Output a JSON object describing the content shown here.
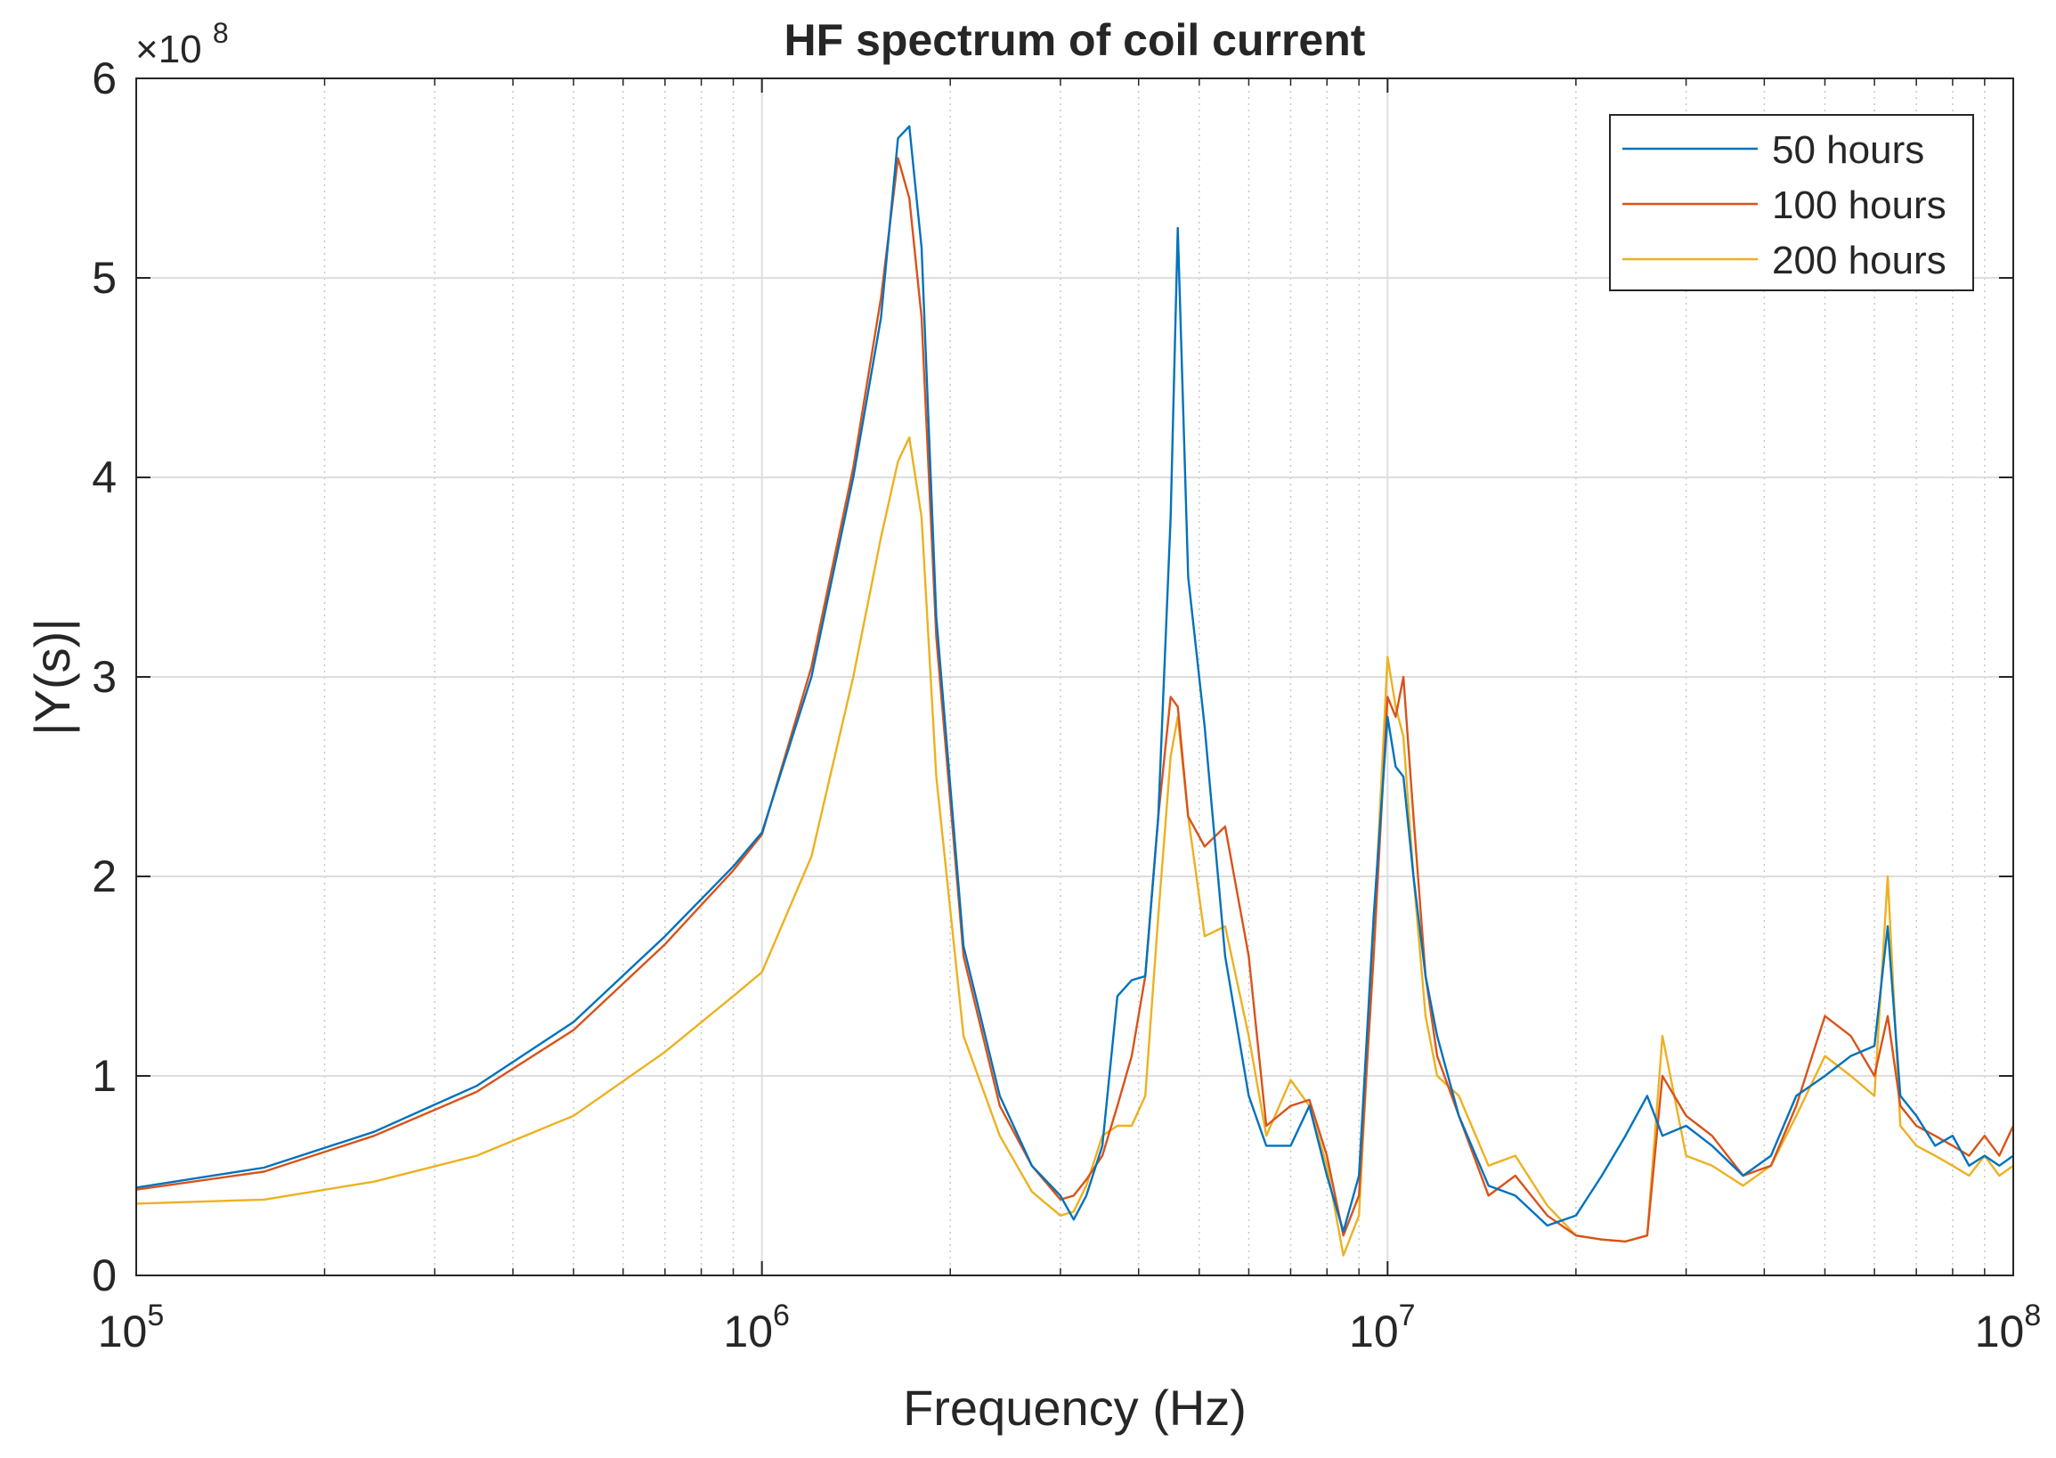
{
  "chart_data": {
    "type": "line",
    "title": "HF spectrum of coil current",
    "xlabel": "Frequency (Hz)",
    "ylabel": "|Y(s)|",
    "xscale": "log",
    "xlim": [
      100000,
      100000000
    ],
    "ylim": [
      0,
      600000000
    ],
    "y_multiplier_base": "×10",
    "y_multiplier_exponent": "8",
    "x_ticks": [
      {
        "base": "10",
        "exp": "5",
        "value": 100000
      },
      {
        "base": "10",
        "exp": "6",
        "value": 1000000
      },
      {
        "base": "10",
        "exp": "7",
        "value": 10000000
      },
      {
        "base": "10",
        "exp": "8",
        "value": 100000000
      }
    ],
    "y_ticks": [
      {
        "label": "0",
        "value": 0
      },
      {
        "label": "1",
        "value": 100000000
      },
      {
        "label": "2",
        "value": 200000000
      },
      {
        "label": "3",
        "value": 300000000
      },
      {
        "label": "4",
        "value": 400000000
      },
      {
        "label": "5",
        "value": 500000000
      },
      {
        "label": "6",
        "value": 600000000
      }
    ],
    "grid": true,
    "legend_position": "top-right",
    "series": [
      {
        "name": "50 hours",
        "color": "#0072BD",
        "x": [
          100000.0,
          160000.0,
          240000.0,
          350000.0,
          500000.0,
          700000.0,
          900000.0,
          1000000.0,
          1200000.0,
          1400000.0,
          1550000.0,
          1650000.0,
          1720000.0,
          1800000.0,
          1900000.0,
          2100000.0,
          2400000.0,
          2700000.0,
          3000000.0,
          3150000.0,
          3300000.0,
          3500000.0,
          3700000.0,
          3900000.0,
          4100000.0,
          4300000.0,
          4500000.0,
          4620000.0,
          4800000.0,
          5100000.0,
          5500000.0,
          6000000.0,
          6400000.0,
          7000000.0,
          7500000.0,
          8000000.0,
          8500000.0,
          9000000.0,
          9500000.0,
          10000000.0,
          10300000.0,
          10600000.0,
          11000000.0,
          11500000.0,
          12000000.0,
          13000000.0,
          14500000.0,
          16000000.0,
          18000000.0,
          20000000.0,
          22000000.0,
          24000000.0,
          26000000.0,
          27500000.0,
          30000000.0,
          33000000.0,
          37000000.0,
          41000000.0,
          45000000.0,
          50000000.0,
          55000000.0,
          60000000.0,
          63000000.0,
          66000000.0,
          70000000.0,
          75000000.0,
          80000000.0,
          85000000.0,
          90000000.0,
          95000000.0,
          100000000.0
        ],
        "y": [
          44000000,
          54000000,
          72000000,
          95000000,
          127000000,
          170000000,
          205000000,
          222000000,
          300000000,
          400000000,
          480000000,
          570000000,
          576000000,
          515000000,
          330000000,
          165000000,
          90000000,
          55000000,
          40000000,
          28000000,
          40000000,
          65000000,
          140000000,
          148000000,
          150000000,
          230000000,
          380000000,
          525000000,
          350000000,
          275000000,
          160000000,
          90000000,
          65000000,
          65000000,
          85000000,
          50000000,
          22000000,
          50000000,
          180000000,
          280000000,
          255000000,
          250000000,
          200000000,
          150000000,
          120000000,
          80000000,
          45000000,
          40000000,
          25000000,
          30000000,
          50000000,
          70000000,
          90000000,
          70000000,
          75000000,
          65000000,
          50000000,
          60000000,
          90000000,
          100000000,
          110000000,
          115000000,
          175000000,
          90000000,
          80000000,
          65000000,
          70000000,
          55000000,
          60000000,
          55000000,
          60000000
        ]
      },
      {
        "name": "100 hours",
        "color": "#D95319",
        "x": [
          100000.0,
          160000.0,
          240000.0,
          350000.0,
          500000.0,
          700000.0,
          900000.0,
          1000000.0,
          1200000.0,
          1400000.0,
          1550000.0,
          1650000.0,
          1720000.0,
          1800000.0,
          1900000.0,
          2100000.0,
          2400000.0,
          2700000.0,
          3000000.0,
          3150000.0,
          3300000.0,
          3500000.0,
          3700000.0,
          3900000.0,
          4100000.0,
          4300000.0,
          4500000.0,
          4620000.0,
          4800000.0,
          5100000.0,
          5500000.0,
          6000000.0,
          6400000.0,
          7000000.0,
          7500000.0,
          8000000.0,
          8500000.0,
          9000000.0,
          9500000.0,
          10000000.0,
          10300000.0,
          10600000.0,
          11000000.0,
          11500000.0,
          12000000.0,
          13000000.0,
          14500000.0,
          16000000.0,
          18000000.0,
          20000000.0,
          22000000.0,
          24000000.0,
          26000000.0,
          27500000.0,
          30000000.0,
          33000000.0,
          37000000.0,
          41000000.0,
          45000000.0,
          50000000.0,
          55000000.0,
          60000000.0,
          63000000.0,
          66000000.0,
          70000000.0,
          75000000.0,
          80000000.0,
          85000000.0,
          90000000.0,
          95000000.0,
          100000000.0
        ],
        "y": [
          43000000,
          52000000,
          70000000,
          92000000,
          123000000,
          166000000,
          203000000,
          221000000,
          305000000,
          405000000,
          490000000,
          560000000,
          540000000,
          480000000,
          320000000,
          160000000,
          85000000,
          55000000,
          38000000,
          40000000,
          48000000,
          60000000,
          85000000,
          110000000,
          150000000,
          230000000,
          290000000,
          285000000,
          230000000,
          215000000,
          225000000,
          160000000,
          75000000,
          85000000,
          88000000,
          60000000,
          20000000,
          40000000,
          160000000,
          290000000,
          280000000,
          300000000,
          230000000,
          150000000,
          110000000,
          80000000,
          40000000,
          50000000,
          30000000,
          20000000,
          18000000,
          17000000,
          20000000,
          100000000,
          80000000,
          70000000,
          50000000,
          55000000,
          85000000,
          130000000,
          120000000,
          100000000,
          130000000,
          85000000,
          75000000,
          70000000,
          65000000,
          60000000,
          70000000,
          60000000,
          75000000
        ]
      },
      {
        "name": "200 hours",
        "color": "#EDB120",
        "x": [
          100000.0,
          160000.0,
          240000.0,
          350000.0,
          500000.0,
          700000.0,
          900000.0,
          1000000.0,
          1200000.0,
          1400000.0,
          1550000.0,
          1650000.0,
          1720000.0,
          1800000.0,
          1900000.0,
          2100000.0,
          2400000.0,
          2700000.0,
          3000000.0,
          3150000.0,
          3300000.0,
          3500000.0,
          3700000.0,
          3900000.0,
          4100000.0,
          4300000.0,
          4500000.0,
          4620000.0,
          4800000.0,
          5100000.0,
          5500000.0,
          6000000.0,
          6400000.0,
          7000000.0,
          7500000.0,
          8000000.0,
          8500000.0,
          9000000.0,
          9500000.0,
          10000000.0,
          10300000.0,
          10600000.0,
          11000000.0,
          11500000.0,
          12000000.0,
          13000000.0,
          14500000.0,
          16000000.0,
          18000000.0,
          20000000.0,
          22000000.0,
          24000000.0,
          26000000.0,
          27500000.0,
          30000000.0,
          33000000.0,
          37000000.0,
          41000000.0,
          45000000.0,
          50000000.0,
          55000000.0,
          60000000.0,
          63000000.0,
          66000000.0,
          70000000.0,
          75000000.0,
          80000000.0,
          85000000.0,
          90000000.0,
          95000000.0,
          100000000.0
        ],
        "y": [
          36000000,
          38000000,
          47000000,
          60000000,
          80000000,
          112000000,
          140000000,
          152000000,
          210000000,
          300000000,
          370000000,
          408000000,
          420000000,
          380000000,
          250000000,
          120000000,
          70000000,
          42000000,
          30000000,
          32000000,
          45000000,
          70000000,
          75000000,
          75000000,
          90000000,
          180000000,
          260000000,
          280000000,
          230000000,
          170000000,
          175000000,
          120000000,
          70000000,
          98000000,
          85000000,
          55000000,
          10000000,
          30000000,
          170000000,
          310000000,
          285000000,
          270000000,
          200000000,
          130000000,
          100000000,
          90000000,
          55000000,
          60000000,
          35000000,
          20000000,
          18000000,
          17000000,
          20000000,
          120000000,
          60000000,
          55000000,
          45000000,
          55000000,
          80000000,
          110000000,
          100000000,
          90000000,
          200000000,
          75000000,
          65000000,
          60000000,
          55000000,
          50000000,
          60000000,
          50000000,
          55000000
        ]
      }
    ]
  }
}
